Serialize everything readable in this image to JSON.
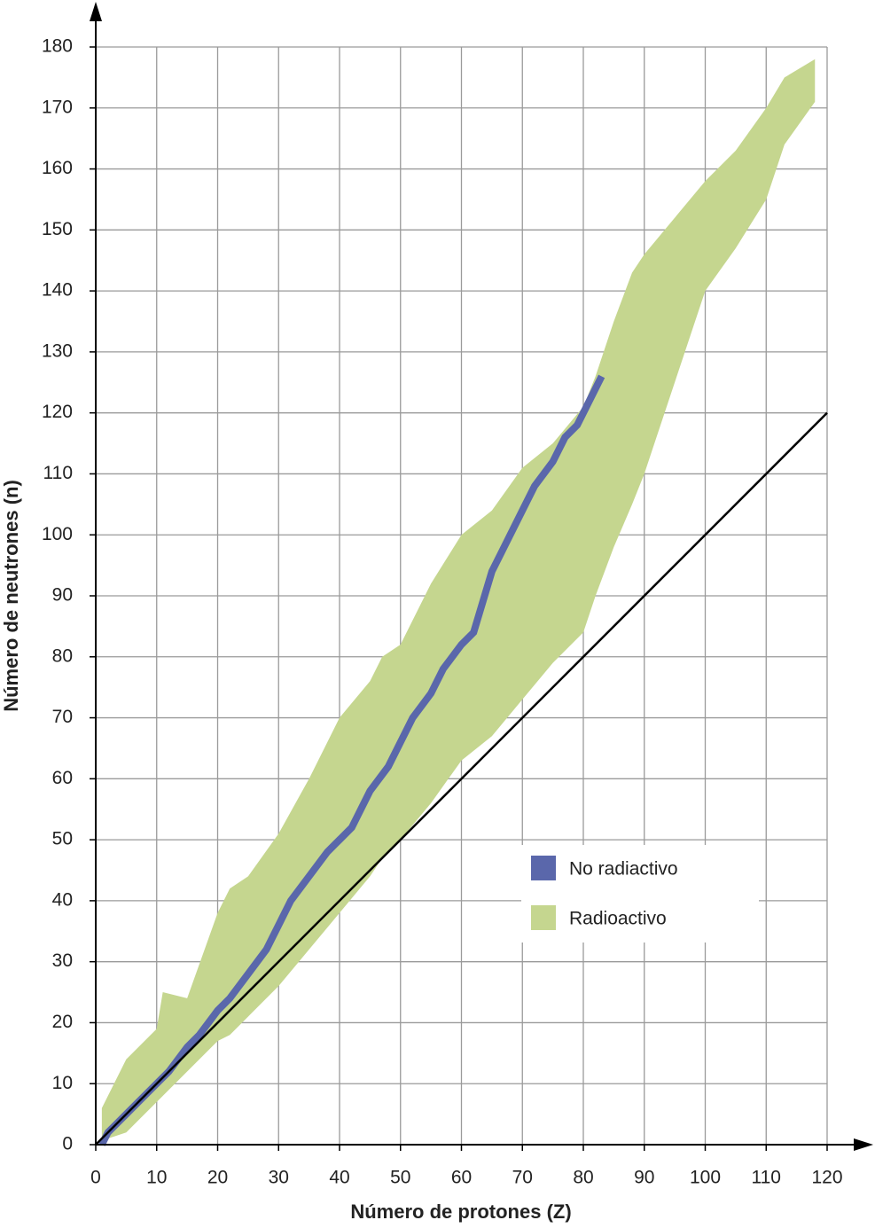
{
  "chart_data": {
    "type": "stability",
    "x_label": "Número de protones (Z)",
    "y_label": "Número de neutrones (n)",
    "xlim": [
      0,
      120
    ],
    "ylim": [
      0,
      180
    ],
    "xticks": [
      0,
      10,
      20,
      30,
      40,
      50,
      60,
      70,
      80,
      90,
      100,
      110,
      120
    ],
    "yticks": [
      0,
      10,
      20,
      30,
      40,
      50,
      60,
      70,
      80,
      90,
      100,
      110,
      120,
      130,
      140,
      150,
      160,
      170,
      180
    ],
    "grid": true,
    "legend": "lower right",
    "series": [
      {
        "name": "No radiactivo",
        "color": "#5a67ab",
        "x": [
          1,
          2,
          5,
          8,
          10,
          12,
          15,
          17,
          20,
          22,
          25,
          28,
          30,
          32,
          35,
          38,
          40,
          42,
          45,
          48,
          50,
          52,
          55,
          57,
          60,
          62,
          65,
          67,
          70,
          72,
          75,
          77,
          79,
          81,
          83
        ],
        "values": [
          0,
          2,
          5,
          8,
          10,
          12,
          16,
          18,
          22,
          24,
          28,
          32,
          36,
          40,
          44,
          48,
          50,
          52,
          58,
          62,
          66,
          70,
          74,
          78,
          82,
          84,
          94,
          98,
          104,
          108,
          112,
          116,
          118,
          122,
          126
        ]
      },
      {
        "name": "Radioactivo",
        "color": "#c5d68f",
        "x": [
          1,
          2,
          5,
          8,
          10,
          11,
          15,
          20,
          22,
          25,
          30,
          35,
          40,
          45,
          47,
          50,
          55,
          60,
          65,
          70,
          75,
          80,
          82,
          85,
          88,
          90,
          95,
          100,
          105,
          110,
          113,
          118
        ],
        "lower": [
          0,
          1,
          2,
          5,
          7,
          8,
          12,
          17,
          18,
          21,
          26,
          32,
          38,
          44,
          47,
          50,
          56,
          63,
          67,
          73,
          79,
          84,
          90,
          98,
          105,
          110,
          125,
          140,
          147,
          155,
          164,
          171
        ],
        "upper": [
          6,
          8,
          14,
          17,
          19,
          25,
          24,
          38,
          42,
          44,
          51,
          60,
          70,
          76,
          80,
          82,
          92,
          100,
          104,
          111,
          115,
          121,
          126,
          135,
          143,
          146,
          152,
          158,
          163,
          170,
          175,
          178
        ]
      }
    ],
    "reference_line": {
      "x": [
        0,
        120
      ],
      "values": [
        0,
        120
      ],
      "color": "#000000"
    }
  }
}
